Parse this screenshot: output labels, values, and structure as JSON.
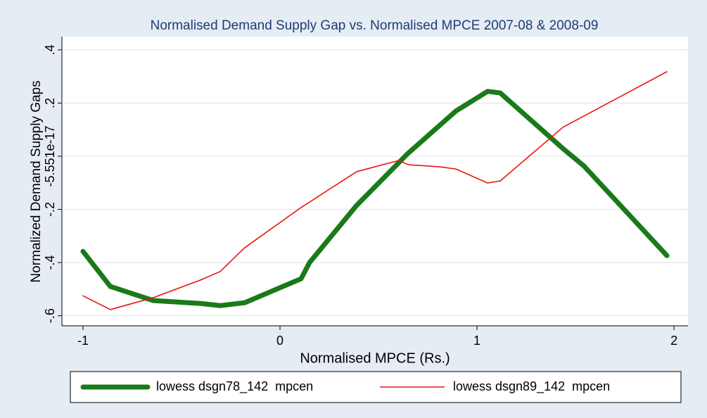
{
  "chart_data": {
    "type": "line",
    "title": "Normalised Demand Supply Gap vs. Normalised MPCE 2007-08 & 2008-09",
    "x_label": "Normalised MPCE (Rs.)",
    "y_label": "Normalized Demand Supply Gaps",
    "xlim": [
      -1.107,
      2.071
    ],
    "ylim": [
      -0.638,
      0.45
    ],
    "xticks": [
      -1,
      0,
      1,
      2
    ],
    "yticks": [
      {
        "value": -0.6,
        "label": "-.6"
      },
      {
        "value": -0.4,
        "label": "-.4"
      },
      {
        "value": -0.2,
        "label": "-.2"
      },
      {
        "value": -5.551e-17,
        "label": "-5.551e-17"
      },
      {
        "value": 0.2,
        "label": ".2"
      },
      {
        "value": 0.4,
        "label": ".4"
      }
    ],
    "grid": true,
    "series": [
      {
        "name": "lowess dsgn78_142  mpcen",
        "color": "#1a7a1a",
        "width": 7,
        "x": [
          -1,
          -0.861,
          -0.643,
          -0.404,
          -0.304,
          -0.179,
          0.107,
          0.15,
          0.389,
          0.65,
          0.893,
          1.054,
          1.118,
          1.436,
          1.543,
          1.964
        ],
        "values": [
          -0.358,
          -0.49,
          -0.543,
          -0.554,
          -0.562,
          -0.551,
          -0.461,
          -0.4,
          -0.185,
          0.011,
          0.17,
          0.244,
          0.238,
          0.029,
          -0.037,
          -0.374
        ]
      },
      {
        "name": "lowess dsgn89_142  mpcen",
        "color": "#e8160c",
        "width": 1.6,
        "x": [
          -1,
          -0.861,
          -0.643,
          -0.404,
          -0.304,
          -0.179,
          0.107,
          0.389,
          0.604,
          0.65,
          0.811,
          0.893,
          1.054,
          1.118,
          1.436,
          1.964
        ],
        "values": [
          -0.525,
          -0.577,
          -0.532,
          -0.466,
          -0.434,
          -0.344,
          -0.193,
          -0.058,
          -0.016,
          -0.032,
          -0.04,
          -0.048,
          -0.101,
          -0.093,
          0.109,
          0.318
        ]
      }
    ]
  }
}
